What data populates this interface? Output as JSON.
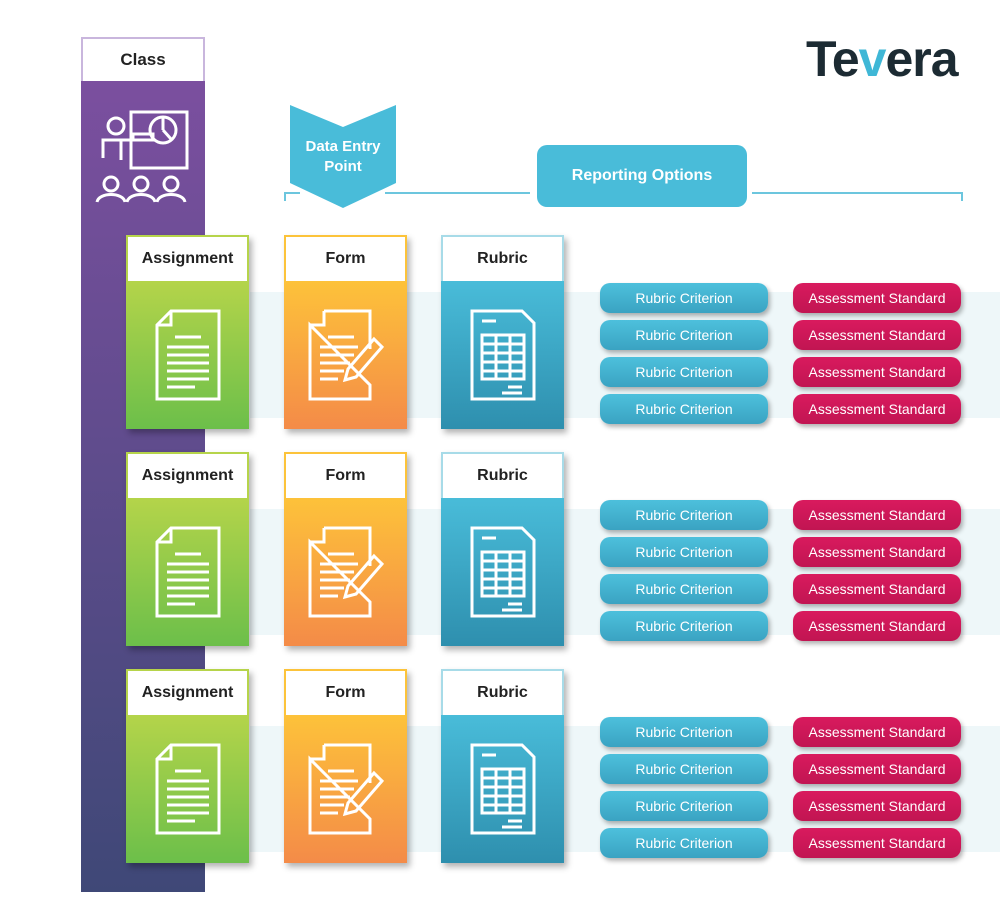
{
  "logo": {
    "text": "Tevera"
  },
  "class": {
    "label": "Class",
    "icon": "classroom-presentation-icon"
  },
  "data_entry": {
    "label": "Data Entry Point"
  },
  "reporting": {
    "label": "Reporting Options"
  },
  "rows": [
    {
      "assignment": "Assignment",
      "form": "Form",
      "rubric": "Rubric",
      "criteria": [
        "Rubric Criterion",
        "Rubric Criterion",
        "Rubric Criterion",
        "Rubric Criterion"
      ],
      "standards": [
        "Assessment Standard",
        "Assessment Standard",
        "Assessment Standard",
        "Assessment Standard"
      ]
    },
    {
      "assignment": "Assignment",
      "form": "Form",
      "rubric": "Rubric",
      "criteria": [
        "Rubric Criterion",
        "Rubric Criterion",
        "Rubric Criterion",
        "Rubric Criterion"
      ],
      "standards": [
        "Assessment Standard",
        "Assessment Standard",
        "Assessment Standard",
        "Assessment Standard"
      ]
    },
    {
      "assignment": "Assignment",
      "form": "Form",
      "rubric": "Rubric",
      "criteria": [
        "Rubric Criterion",
        "Rubric Criterion",
        "Rubric Criterion",
        "Rubric Criterion"
      ],
      "standards": [
        "Assessment Standard",
        "Assessment Standard",
        "Assessment Standard",
        "Assessment Standard"
      ]
    }
  ],
  "colors": {
    "class": "#7b4f9f",
    "assignment": "#8cc84b",
    "form": "#f9a63f",
    "rubric": "#49bcd9",
    "criterion": "#49bcd9",
    "standard": "#d01a5a"
  }
}
